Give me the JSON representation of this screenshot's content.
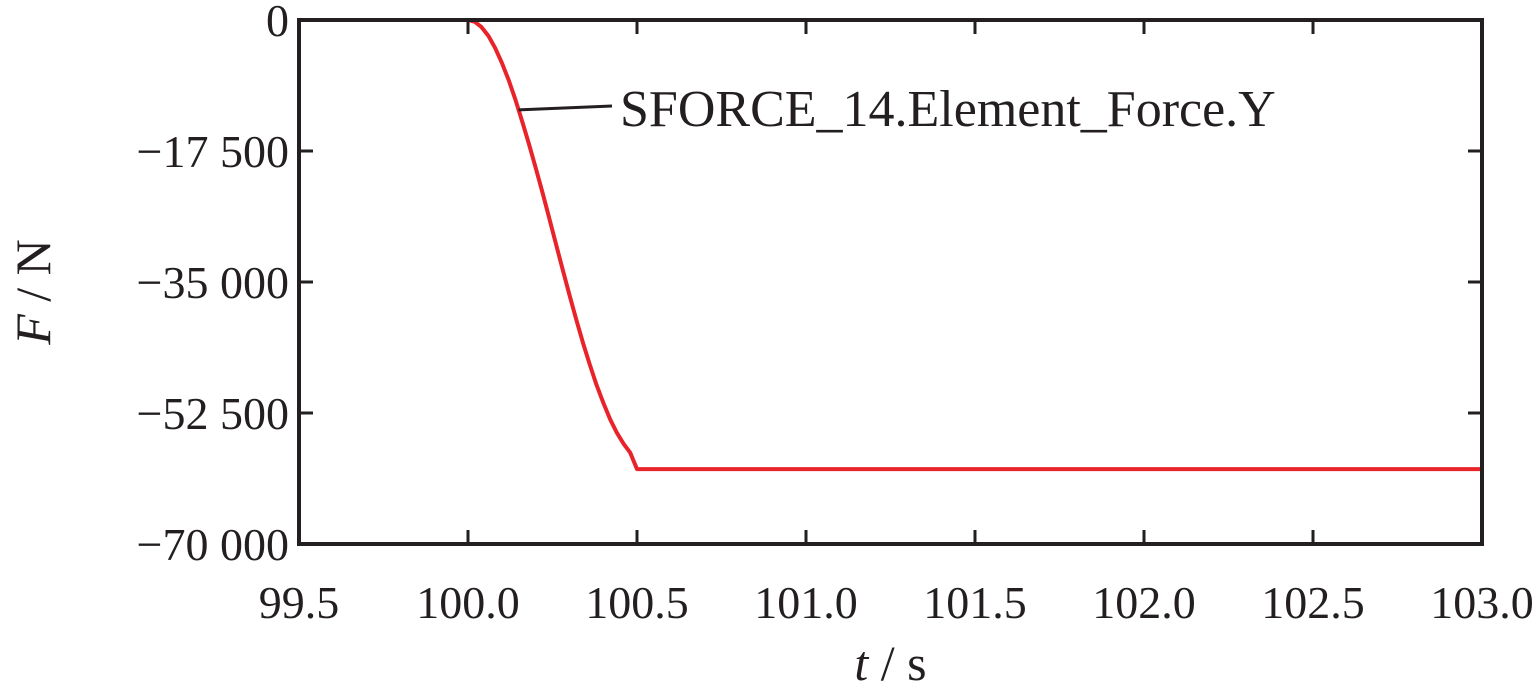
{
  "chart_data": {
    "type": "line",
    "title": "",
    "xlabel_var": "t",
    "xlabel_sep": " / ",
    "xlabel_unit": "s",
    "ylabel_var": "F",
    "ylabel_sep": " / ",
    "ylabel_unit": "N",
    "xlim": [
      99.5,
      103.0
    ],
    "ylim": [
      -70000,
      0
    ],
    "xticks": [
      99.5,
      100.0,
      100.5,
      101.0,
      101.5,
      102.0,
      102.5,
      103.0
    ],
    "xtick_labels": [
      "99.5",
      "100.0",
      "100.5",
      "101.0",
      "101.5",
      "102.0",
      "102.5",
      "103.0"
    ],
    "yticks": [
      0,
      -17500,
      -35000,
      -52500,
      -70000
    ],
    "ytick_labels": [
      "0",
      "−17 500",
      "−35 000",
      "−52 500",
      "−70 000"
    ],
    "grid": false,
    "legend": "none",
    "series": [
      {
        "name": "SFORCE_14.Element_Force.Y",
        "color": "#e8232a",
        "x": [
          99.5,
          100.0,
          100.02,
          100.04,
          100.06,
          100.08,
          100.1,
          100.12,
          100.14,
          100.16,
          100.18,
          100.2,
          100.22,
          100.24,
          100.26,
          100.28,
          100.3,
          100.32,
          100.34,
          100.36,
          100.38,
          100.4,
          100.42,
          100.44,
          100.46,
          100.48,
          100.5,
          101.0,
          101.5,
          102.0,
          102.5,
          103.0
        ],
        "y": [
          0,
          0,
          -240,
          -950,
          -2100,
          -3700,
          -5700,
          -8000,
          -10600,
          -13500,
          -16500,
          -19700,
          -23000,
          -26400,
          -29900,
          -33300,
          -36700,
          -40000,
          -43100,
          -46000,
          -48700,
          -51100,
          -53300,
          -55100,
          -56600,
          -57800,
          -60000,
          -60000,
          -60000,
          -60000,
          -60000,
          -60000
        ]
      }
    ],
    "annotation": {
      "text": "SFORCE_14.Element_Force.Y",
      "points_to": [
        100.15,
        -12000
      ]
    }
  }
}
